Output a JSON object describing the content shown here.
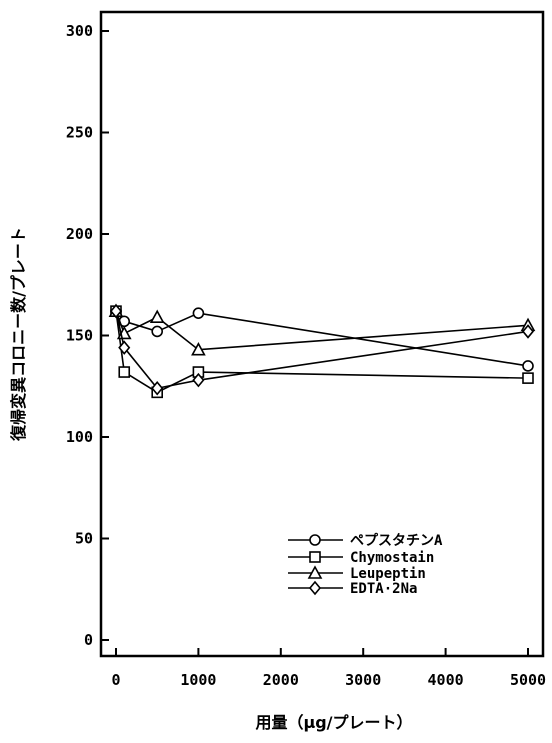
{
  "chart_data": {
    "type": "line",
    "xlabel": "用量（μg/プレート）",
    "ylabel": "復帰変異コロニー数/プレート",
    "xlim": [
      -100,
      5100
    ],
    "ylim": [
      -10,
      310
    ],
    "xticks": [
      0,
      1000,
      2000,
      3000,
      4000,
      5000
    ],
    "xtick_labels": [
      "0",
      "1000",
      "2000",
      "3000",
      "4000",
      "5000"
    ],
    "yticks": [
      0,
      50,
      100,
      150,
      200,
      250,
      300
    ],
    "ytick_labels": [
      "0",
      "50",
      "100",
      "150",
      "200",
      "250",
      "300"
    ],
    "legend_position": "lower-right",
    "grid": false,
    "x": [
      0,
      100,
      500,
      1000,
      5000
    ],
    "series": [
      {
        "name": "ペプスタチンA",
        "marker": "circle",
        "values": [
          162,
          157,
          152,
          161,
          135
        ]
      },
      {
        "name": "Chymostain",
        "marker": "square",
        "values": [
          162,
          132,
          122,
          132,
          129
        ]
      },
      {
        "name": "Leupeptin",
        "marker": "triangle",
        "values": [
          162,
          151,
          159,
          143,
          155
        ]
      },
      {
        "name": "EDTA·2Na",
        "marker": "diamond",
        "values": [
          162,
          144,
          124,
          128,
          152
        ]
      }
    ]
  }
}
